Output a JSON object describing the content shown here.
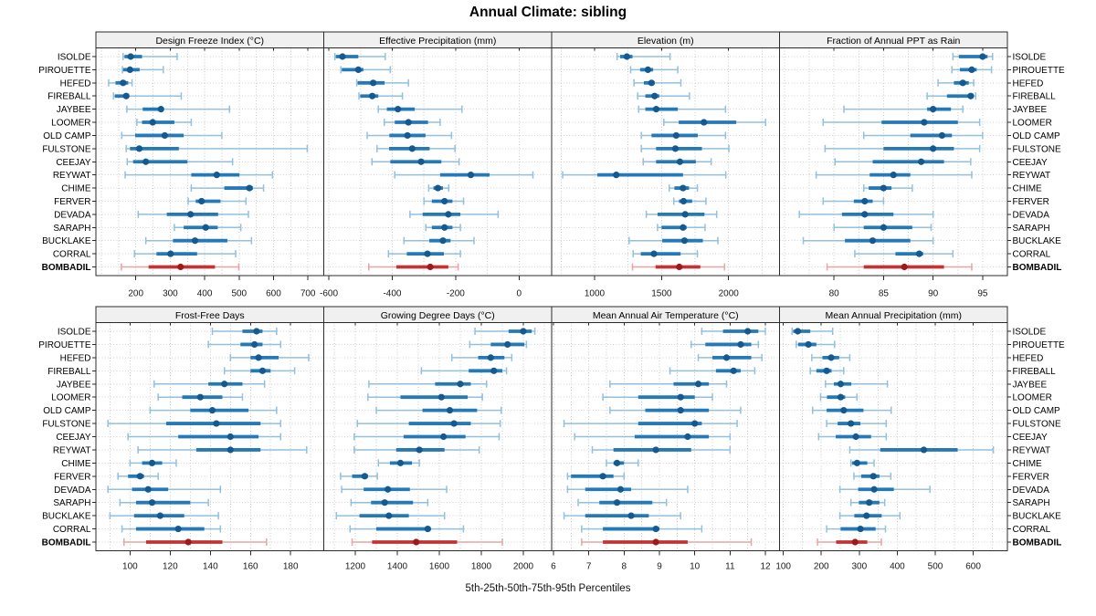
{
  "title": "Annual Climate: sibling",
  "caption": "5th-25th-50th-75th-95th Percentiles",
  "colors": {
    "blue_bar": "#2579B7",
    "blue_dot": "#14598F",
    "blue_whisker": "#92C0DD",
    "red_bar": "#C23434",
    "red_dot": "#9E1A1A",
    "red_whisker": "#E3A6A4",
    "grid": "#C8C8C8",
    "row_grid": "#D2D2D2",
    "panel_border": "#2B2B2B",
    "strip_bg": "#F0F0F0",
    "tick_text": "#1A1A1A"
  },
  "chart_data": {
    "type": "percentile-dotplot",
    "layout": "2x4 trellis, shared site axis",
    "sites": [
      "ISOLDE",
      "PIROUETTE",
      "HEFED",
      "FIREBALL",
      "JAYBEE",
      "LOOMER",
      "OLD CAMP",
      "FULSTONE",
      "CEEJAY",
      "REYWAT",
      "CHIME",
      "FERVER",
      "DEVADA",
      "SARAPH",
      "BUCKLAKE",
      "CORRAL",
      "BOMBADIL"
    ],
    "highlight_site": "BOMBADIL",
    "percentiles": [
      5,
      25,
      50,
      75,
      95
    ],
    "panels": [
      {
        "title": "Design Freeze Index (°C)",
        "xlim": [
          84,
          746
        ],
        "ticks": [
          200,
          300,
          400,
          500,
          600,
          700
        ],
        "minor_grid_step": 50,
        "values": [
          [
            163,
            167,
            185,
            218,
            320
          ],
          [
            161,
            163,
            183,
            211,
            280
          ],
          [
            121,
            141,
            163,
            178,
            189
          ],
          [
            135,
            139,
            172,
            181,
            332
          ],
          [
            174,
            220,
            273,
            280,
            472
          ],
          [
            203,
            218,
            249,
            312,
            361
          ],
          [
            159,
            198,
            284,
            339,
            450
          ],
          [
            172,
            183,
            210,
            325,
            698
          ],
          [
            175,
            192,
            229,
            350,
            481
          ],
          [
            169,
            361,
            435,
            501,
            597
          ],
          [
            361,
            457,
            530,
            540,
            571
          ],
          [
            352,
            374,
            391,
            446,
            520
          ],
          [
            207,
            290,
            359,
            439,
            527
          ],
          [
            312,
            339,
            403,
            438,
            505
          ],
          [
            229,
            308,
            372,
            466,
            536
          ],
          [
            196,
            260,
            301,
            378,
            490
          ],
          [
            158,
            237,
            330,
            430,
            499
          ]
        ]
      },
      {
        "title": "Effective Precipitation (mm)",
        "xlim": [
          -616,
          103
        ],
        "ticks": [
          -600,
          -400,
          -200,
          0
        ],
        "minor_grid_step": 100,
        "values": [
          [
            -581,
            -578,
            -557,
            -507,
            -422
          ],
          [
            -562,
            -559,
            -507,
            -491,
            -406
          ],
          [
            -512,
            -509,
            -460,
            -424,
            -349
          ],
          [
            -505,
            -501,
            -463,
            -444,
            -368
          ],
          [
            -444,
            -417,
            -382,
            -329,
            -180
          ],
          [
            -425,
            -392,
            -349,
            -287,
            -249
          ],
          [
            -479,
            -409,
            -352,
            -295,
            -213
          ],
          [
            -448,
            -410,
            -337,
            -282,
            -202
          ],
          [
            -464,
            -406,
            -309,
            -245,
            -189
          ],
          [
            -392,
            -249,
            -152,
            -93,
            44
          ],
          [
            -285,
            -270,
            -256,
            -240,
            -222
          ],
          [
            -300,
            -275,
            -235,
            -210,
            -175
          ],
          [
            -344,
            -304,
            -223,
            -185,
            -66
          ],
          [
            -294,
            -275,
            -235,
            -210,
            -185
          ],
          [
            -363,
            -283,
            -240,
            -216,
            -142
          ],
          [
            -412,
            -354,
            -289,
            -237,
            -185
          ],
          [
            -474,
            -387,
            -280,
            -223,
            -192
          ]
        ]
      },
      {
        "title": "Elevation (m)",
        "xlim": [
          680,
          2380
        ],
        "ticks": [
          1000,
          1500,
          2000
        ],
        "minor_grid_step": 250,
        "values": [
          [
            1168,
            1191,
            1241,
            1283,
            1563
          ],
          [
            1269,
            1340,
            1398,
            1437,
            1621
          ],
          [
            1294,
            1368,
            1425,
            1448,
            1644
          ],
          [
            1322,
            1379,
            1448,
            1483,
            1708
          ],
          [
            1329,
            1379,
            1460,
            1621,
            1977
          ],
          [
            1517,
            1628,
            1816,
            2057,
            2276
          ],
          [
            1349,
            1425,
            1609,
            1770,
            1977
          ],
          [
            1349,
            1459,
            1603,
            1801,
            2002
          ],
          [
            1363,
            1459,
            1637,
            1756,
            1870
          ],
          [
            762,
            1021,
            1162,
            1660,
            1979
          ],
          [
            1557,
            1596,
            1660,
            1705,
            1767
          ],
          [
            1591,
            1630,
            1664,
            1728,
            1831
          ],
          [
            1386,
            1470,
            1676,
            1820,
            1911
          ],
          [
            1470,
            1500,
            1660,
            1687,
            1824
          ],
          [
            1258,
            1505,
            1671,
            1808,
            1920
          ],
          [
            1288,
            1345,
            1443,
            1642,
            1767
          ],
          [
            1283,
            1455,
            1632,
            1789,
            1970
          ]
        ]
      },
      {
        "title": "Fraction of Annual PPT as Rain",
        "xlim": [
          74.5,
          97.5
        ],
        "ticks": [
          80,
          85,
          90,
          95
        ],
        "minor_grid_step": 2.5,
        "values": [
          [
            92.0,
            92.6,
            95.0,
            95.5,
            96.0
          ],
          [
            91.9,
            92.7,
            93.9,
            94.4,
            95.9
          ],
          [
            90.5,
            92.1,
            93.0,
            93.6,
            94.1
          ],
          [
            89.4,
            91.4,
            93.8,
            94.1,
            94.3
          ],
          [
            81.0,
            89.4,
            90.0,
            91.8,
            93.0
          ],
          [
            78.9,
            84.8,
            89.1,
            92.5,
            94.7
          ],
          [
            83.0,
            87.7,
            90.9,
            91.9,
            95.0
          ],
          [
            79.1,
            85.0,
            90.0,
            92.1,
            94.7
          ],
          [
            80.1,
            83.9,
            88.8,
            91.1,
            93.8
          ],
          [
            78.2,
            83.6,
            86.0,
            87.7,
            93.9
          ],
          [
            83.0,
            83.5,
            85.0,
            85.8,
            87.9
          ],
          [
            78.9,
            82.0,
            83.1,
            83.9,
            85.0
          ],
          [
            76.5,
            80.8,
            83.1,
            86.0,
            90.0
          ],
          [
            80.0,
            83.0,
            85.0,
            87.9,
            89.8
          ],
          [
            76.9,
            81.1,
            83.9,
            87.7,
            90.0
          ],
          [
            82.1,
            86.2,
            88.6,
            89.0,
            92.0
          ],
          [
            79.3,
            83.0,
            87.1,
            91.1,
            93.9
          ]
        ]
      },
      {
        "title": "Frost-Free Days",
        "xlim": [
          83,
          196.5
        ],
        "ticks": [
          100,
          120,
          140,
          160,
          180
        ],
        "minor_grid_step": 10,
        "values": [
          [
            141,
            156,
            163,
            166,
            173
          ],
          [
            139,
            155,
            162,
            166,
            175
          ],
          [
            150,
            160,
            164,
            174,
            189
          ],
          [
            147,
            160,
            166,
            170,
            182
          ],
          [
            112,
            139,
            147,
            156,
            167
          ],
          [
            114,
            126,
            135,
            146,
            156
          ],
          [
            110,
            130,
            141,
            159,
            173
          ],
          [
            89,
            118,
            143,
            165,
            175
          ],
          [
            99,
            124,
            150,
            164,
            175
          ],
          [
            104,
            133,
            150,
            165,
            188
          ],
          [
            100,
            106,
            111,
            116,
            123
          ],
          [
            94,
            99,
            105,
            107,
            114
          ],
          [
            89,
            101,
            109,
            119,
            145
          ],
          [
            95,
            103,
            111,
            130,
            139
          ],
          [
            90,
            102,
            115,
            127,
            144
          ],
          [
            96,
            103,
            124,
            137,
            145
          ],
          [
            97,
            108,
            129,
            146,
            168
          ]
        ]
      },
      {
        "title": "Growing Degree Days (°C)",
        "xlim": [
          1050,
          2135
        ],
        "ticks": [
          1200,
          1400,
          1600,
          1800,
          2000
        ],
        "minor_grid_step": 100,
        "values": [
          [
            1770,
            1930,
            2000,
            2040,
            2055
          ],
          [
            1745,
            1845,
            1925,
            2005,
            2015
          ],
          [
            1660,
            1785,
            1845,
            1910,
            1945
          ],
          [
            1515,
            1740,
            1860,
            1900,
            1920
          ],
          [
            1265,
            1580,
            1700,
            1750,
            1825
          ],
          [
            1260,
            1415,
            1610,
            1735,
            1805
          ],
          [
            1300,
            1520,
            1650,
            1780,
            1895
          ],
          [
            1210,
            1455,
            1670,
            1750,
            1890
          ],
          [
            1195,
            1430,
            1620,
            1725,
            1885
          ],
          [
            1195,
            1395,
            1505,
            1625,
            1790
          ],
          [
            1310,
            1365,
            1415,
            1470,
            1505
          ],
          [
            1130,
            1185,
            1245,
            1260,
            1305
          ],
          [
            1135,
            1240,
            1355,
            1460,
            1635
          ],
          [
            1180,
            1275,
            1340,
            1475,
            1545
          ],
          [
            1110,
            1220,
            1360,
            1455,
            1625
          ],
          [
            1175,
            1300,
            1545,
            1560,
            1715
          ],
          [
            1185,
            1280,
            1490,
            1685,
            1900
          ]
        ]
      },
      {
        "title": "Mean Annual Air Temperature (°C)",
        "xlim": [
          5.95,
          12.4
        ],
        "ticks": [
          6,
          7,
          8,
          9,
          10,
          11,
          12
        ],
        "minor_grid_step": 0.5,
        "values": [
          [
            10.2,
            10.8,
            11.5,
            11.8,
            12.0
          ],
          [
            9.9,
            10.3,
            11.3,
            11.6,
            11.8
          ],
          [
            10.1,
            10.5,
            10.9,
            11.6,
            11.9
          ],
          [
            9.3,
            10.6,
            11.1,
            11.3,
            11.7
          ],
          [
            7.6,
            9.4,
            10.1,
            10.4,
            10.9
          ],
          [
            7.4,
            8.4,
            9.6,
            10.0,
            10.5
          ],
          [
            7.6,
            8.6,
            9.6,
            10.4,
            11.3
          ],
          [
            6.3,
            8.4,
            10.0,
            10.2,
            11.2
          ],
          [
            6.6,
            8.3,
            9.8,
            10.4,
            11.0
          ],
          [
            7.1,
            7.7,
            8.9,
            9.9,
            11.0
          ],
          [
            7.5,
            7.7,
            7.8,
            8.0,
            8.4
          ],
          [
            6.4,
            6.5,
            7.4,
            7.7,
            8.0
          ],
          [
            6.4,
            6.9,
            7.9,
            8.2,
            9.8
          ],
          [
            6.7,
            7.3,
            7.8,
            8.8,
            9.2
          ],
          [
            6.3,
            6.9,
            8.2,
            8.7,
            9.6
          ],
          [
            6.8,
            7.4,
            8.9,
            9.0,
            10.2
          ],
          [
            6.8,
            7.4,
            8.9,
            9.8,
            11.6
          ]
        ]
      },
      {
        "title": "Mean Annual Precipitation (mm)",
        "xlim": [
          90,
          690
        ],
        "ticks": [
          100,
          200,
          300,
          400,
          500,
          600
        ],
        "minor_grid_step": 50,
        "values": [
          [
            123,
            126,
            138,
            171,
            230
          ],
          [
            134,
            139,
            166,
            187,
            235
          ],
          [
            175,
            203,
            226,
            247,
            275
          ],
          [
            171,
            187,
            214,
            227,
            259
          ],
          [
            211,
            233,
            251,
            279,
            374
          ],
          [
            198,
            215,
            251,
            263,
            294
          ],
          [
            177,
            214,
            259,
            311,
            384
          ],
          [
            214,
            243,
            278,
            303,
            371
          ],
          [
            193,
            238,
            291,
            331,
            371
          ],
          [
            275,
            355,
            470,
            559,
            653
          ],
          [
            278,
            281,
            294,
            321,
            339
          ],
          [
            286,
            305,
            337,
            353,
            383
          ],
          [
            249,
            297,
            339,
            391,
            486
          ],
          [
            278,
            299,
            326,
            353,
            367
          ],
          [
            249,
            287,
            319,
            359,
            407
          ],
          [
            214,
            251,
            303,
            343,
            369
          ],
          [
            190,
            239,
            289,
            321,
            358
          ]
        ]
      }
    ]
  }
}
